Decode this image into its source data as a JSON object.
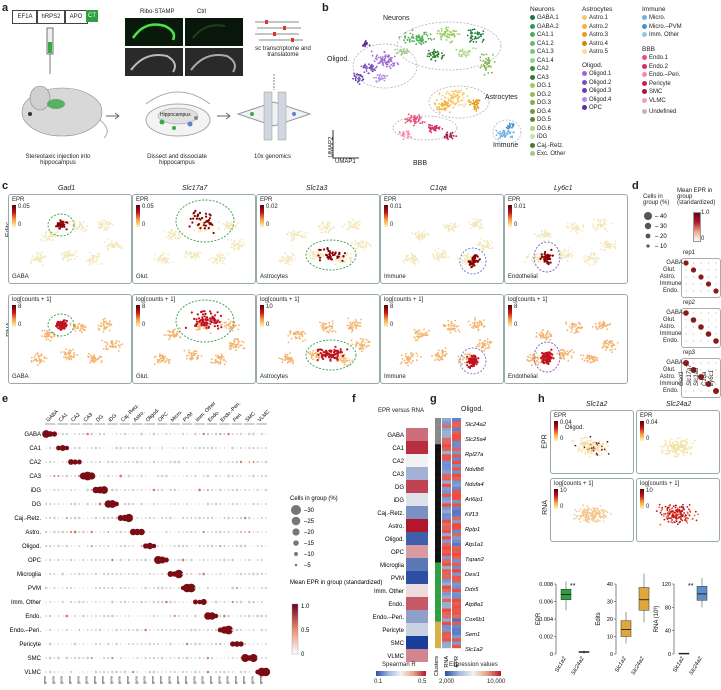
{
  "panels": [
    "a",
    "b",
    "c",
    "d",
    "e",
    "f",
    "g",
    "h"
  ],
  "a": {
    "construct": [
      "EF1A",
      "hRPS2",
      "APO",
      "CT"
    ],
    "ribo_label": "Ribo-STAMP",
    "ctrl_label": "Ctrl",
    "hippo_label": "Hippocampus",
    "sc_label": "sc transcriptome and translatome",
    "step1": "Stereotaxic injection into hippocampus",
    "step2": "Dissect and dissociate hippocampus",
    "step3": "10x genomics"
  },
  "b": {
    "umap1": "UMAP1",
    "umap2": "UMAP2",
    "cluster_labels": [
      "Neurons",
      "Oligod.",
      "Astrocytes",
      "Immune",
      "BBB"
    ],
    "legend": {
      "neurons_title": "Neurons",
      "neurons": [
        {
          "name": "GABA.1",
          "color": "#1a7a3a"
        },
        {
          "name": "GABA.2",
          "color": "#2e9e4e"
        },
        {
          "name": "CA1.1",
          "color": "#4caf50"
        },
        {
          "name": "CA1.2",
          "color": "#66bb6a"
        },
        {
          "name": "CA1.3",
          "color": "#7cc47f"
        },
        {
          "name": "CA1.4",
          "color": "#8fd18f"
        },
        {
          "name": "CA2",
          "color": "#3b8d3e"
        },
        {
          "name": "CA3",
          "color": "#2f7d32"
        },
        {
          "name": "DG.1",
          "color": "#9ccc65"
        },
        {
          "name": "DG.2",
          "color": "#8bc34a"
        },
        {
          "name": "DG.3",
          "color": "#7cb342"
        },
        {
          "name": "DG.4",
          "color": "#689f38"
        },
        {
          "name": "DG.5",
          "color": "#558b2f"
        },
        {
          "name": "DG.6",
          "color": "#aed581"
        },
        {
          "name": "iDG",
          "color": "#c5e1a5"
        },
        {
          "name": "Caj.-Retz.",
          "color": "#4a7a2a"
        },
        {
          "name": "Exc. Other",
          "color": "#a5c88a"
        }
      ],
      "astro_title": "Astrocytes",
      "astro": [
        {
          "name": "Astro.1",
          "color": "#f7c76b"
        },
        {
          "name": "Astro.2",
          "color": "#f2b43d"
        },
        {
          "name": "Astro.3",
          "color": "#e89a1c"
        },
        {
          "name": "Astro.4",
          "color": "#d68410"
        },
        {
          "name": "Astro.5",
          "color": "#f9dc9a"
        }
      ],
      "oligo_title": "Oligod.",
      "oligo": [
        {
          "name": "Oligod.1",
          "color": "#9b6ad1"
        },
        {
          "name": "Oligod.2",
          "color": "#7e4fbf"
        },
        {
          "name": "Oligod.3",
          "color": "#6a3fb0"
        },
        {
          "name": "Oligod.4",
          "color": "#b58be0"
        },
        {
          "name": "OPC",
          "color": "#5b2ea0"
        }
      ],
      "immune_title": "Immune",
      "immune": [
        {
          "name": "Micro.",
          "color": "#6fb3e0"
        },
        {
          "name": "Micro.–PVM",
          "color": "#4a90c8"
        },
        {
          "name": "Imm. Other",
          "color": "#8fc8ea"
        }
      ],
      "bbb_title": "BBB",
      "bbb": [
        {
          "name": "Endo.1",
          "color": "#e8507a"
        },
        {
          "name": "Endo.2",
          "color": "#d42e5c"
        },
        {
          "name": "Endo.–Peri.",
          "color": "#f58aa8"
        },
        {
          "name": "Pericyte",
          "color": "#c21f4e"
        },
        {
          "name": "SMC",
          "color": "#a8123c"
        },
        {
          "name": "VLMC",
          "color": "#f2a0b8"
        }
      ],
      "undefined": {
        "name": "Undefined",
        "color": "#bbbbbb"
      }
    }
  },
  "c": {
    "genes": [
      "Gad1",
      "Slc17a7",
      "Slc1a3",
      "C1qa",
      "Ly6c1"
    ],
    "edit_max": [
      "0.05",
      "0.05",
      "0.02",
      "0.01",
      "0.01"
    ],
    "rna_max": [
      "8",
      "8",
      "10",
      "8",
      "8"
    ],
    "edit_title": "EPR",
    "rna_title": "log[counts + 1]",
    "zero": "0",
    "celltypes": [
      "GABA",
      "Glut.",
      "Astrocytes",
      "Immune",
      "Endothelial"
    ],
    "row_edits": "Edits",
    "row_rna": "RNA"
  },
  "d": {
    "size_title": "Cells in group (%)",
    "sizes": [
      "40",
      "30",
      "20",
      "10"
    ],
    "color_title": "Mean EPR in group (standardized)",
    "cmax": "1.0",
    "cmin": "0",
    "reps": [
      "rep1",
      "rep2",
      "rep3"
    ],
    "rows": [
      "GABA",
      "Glut.",
      "Astro.",
      "Immune",
      "Endo."
    ],
    "genes": [
      "Gad1",
      "Slc17a7",
      "Slc1a3",
      "C1qa",
      "Ly6c1"
    ]
  },
  "e": {
    "col_groups": [
      "GABA",
      "CA1",
      "CA2",
      "CA3",
      "DG",
      "iDG",
      "Caj.-Retz.",
      "Astro.",
      "Oligod.",
      "OPC",
      "Micro.",
      "PVM",
      "Imm. Other",
      "Endo.",
      "Endo.-Peri.",
      "Peri.",
      "SMC",
      "VLMC"
    ],
    "rows": [
      "GABA",
      "CA1",
      "CA2",
      "CA3",
      "iDG",
      "DG",
      "Caj.-Retz.",
      "Astro.",
      "Oligod.",
      "OPC",
      "Microglia",
      "PVM",
      "Imm. Other",
      "Endo.",
      "Endo.–Peri.",
      "Pericyte",
      "SMC",
      "VLMC"
    ],
    "size_title": "Cells in group (%)",
    "sizes": [
      "30",
      "25",
      "20",
      "15",
      "10",
      "5"
    ],
    "color_title": "Mean EPR in group (standardized)",
    "cticks": [
      "1.0",
      "0.5",
      "0"
    ]
  },
  "f": {
    "title": "EPR versus RNA",
    "rows": [
      "GABA",
      "CA1",
      "CA2",
      "CA3",
      "DG",
      "iDG",
      "Caj.-Retz.",
      "Astro.",
      "Oligod.",
      "OPC",
      "Microglia",
      "PVM",
      "Imm. Other",
      "Endo.",
      "Endo.–Peri.",
      "Pericyte",
      "SMC",
      "VLMC"
    ],
    "values": [
      0.42,
      0.48,
      0.3,
      0.22,
      0.46,
      0.28,
      0.18,
      0.5,
      0.12,
      0.38,
      0.15,
      0.1,
      0.32,
      0.44,
      0.2,
      0.26,
      0.08,
      0.4
    ],
    "cbar_title": "Spearman R",
    "cmin": "0.1",
    "cmax": "0.5"
  },
  "g": {
    "title": "Oligod.",
    "genes": [
      "Slc24a2",
      "Slc25a4",
      "Rpl27a",
      "Ndufb8",
      "Ndufa4",
      "Arl6ip1",
      "Kif13",
      "Rplp1",
      "Atp1a1",
      "Tspan2",
      "Desi1",
      "Ddx5",
      "Atp8a1",
      "Cox6b1",
      "Sem1",
      "Slc1a2"
    ],
    "col_labels": [
      "Clusters",
      "RNA",
      "EPR"
    ],
    "cbar_title": "Expression values",
    "cmin": "2,000",
    "cmax": "10,000"
  },
  "h": {
    "genes": [
      "Slc1a2",
      "Slc24a2"
    ],
    "epr_title": "EPR",
    "epr_max": "0.04",
    "rna_title": "log[counts + 1]",
    "rna_max": "10",
    "zero": "0",
    "oligo_label": "Oligod.",
    "row_epr": "EPR",
    "row_rna": "RNA",
    "box_epr": {
      "ylabel": "EPR",
      "yticks": [
        "0.008",
        "0.006",
        "0.004",
        "0.002",
        "0"
      ],
      "values": [
        {
          "gene": "Slc1a2",
          "q1": 0.0062,
          "median": 0.0068,
          "q3": 0.0074,
          "min": 0.005,
          "max": 0.0083
        },
        {
          "gene": "Slc24a2",
          "q1": 0.0002,
          "median": 0.0002,
          "q3": 0.0003,
          "min": 0.0,
          "max": 0.0004
        }
      ],
      "sig": "**"
    },
    "box_edits": {
      "ylabel": "Edits",
      "yticks": [
        "40",
        "30",
        "20",
        "10",
        "0"
      ],
      "values": [
        {
          "gene": "Slc1a2",
          "q1": 10,
          "median": 14,
          "q3": 19,
          "min": 6,
          "max": 24
        },
        {
          "gene": "Slc24a2",
          "q1": 25,
          "median": 31,
          "q3": 38,
          "min": 18,
          "max": 46
        }
      ]
    },
    "box_rna": {
      "ylabel": "RNA (10³)",
      "yticks": [
        "120",
        "80",
        "40",
        "0"
      ],
      "values": [
        {
          "gene": "Slc1a2",
          "q1": 0.5,
          "median": 1,
          "q3": 1.5,
          "min": 0,
          "max": 2
        },
        {
          "gene": "Slc24a2",
          "q1": 92,
          "median": 103,
          "q3": 116,
          "min": 80,
          "max": 130
        }
      ],
      "sig": "**"
    }
  }
}
